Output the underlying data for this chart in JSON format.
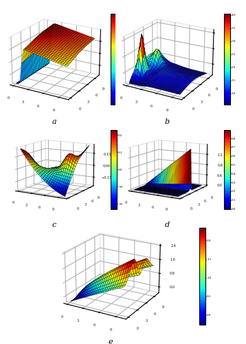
{
  "background_color": "#ffffff",
  "colormap": "jet",
  "label_fontsize": 8,
  "subplot_labels": [
    "a",
    "b",
    "c",
    "d",
    "e"
  ],
  "nx": 25,
  "ny": 25
}
